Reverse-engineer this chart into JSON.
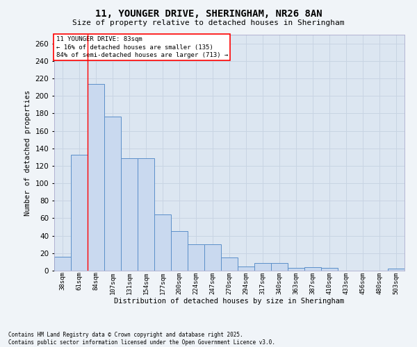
{
  "title_line1": "11, YOUNGER DRIVE, SHERINGHAM, NR26 8AN",
  "title_line2": "Size of property relative to detached houses in Sheringham",
  "xlabel": "Distribution of detached houses by size in Sheringham",
  "ylabel": "Number of detached properties",
  "categories": [
    "38sqm",
    "61sqm",
    "84sqm",
    "107sqm",
    "131sqm",
    "154sqm",
    "177sqm",
    "200sqm",
    "224sqm",
    "247sqm",
    "270sqm",
    "294sqm",
    "317sqm",
    "340sqm",
    "363sqm",
    "387sqm",
    "410sqm",
    "433sqm",
    "456sqm",
    "480sqm",
    "503sqm"
  ],
  "values": [
    16,
    133,
    214,
    176,
    129,
    129,
    64,
    45,
    30,
    30,
    15,
    5,
    9,
    9,
    3,
    4,
    3,
    0,
    0,
    0,
    2
  ],
  "bar_color": "#c9d9ef",
  "bar_edge_color": "#5b8fc9",
  "annotation_text": "11 YOUNGER DRIVE: 83sqm\n← 16% of detached houses are smaller (135)\n84% of semi-detached houses are larger (713) →",
  "grid_color": "#c8d4e3",
  "background_color": "#dce6f1",
  "figure_background": "#f0f4f8",
  "footer_text": "Contains HM Land Registry data © Crown copyright and database right 2025.\nContains public sector information licensed under the Open Government Licence v3.0.",
  "ylim": [
    0,
    270
  ],
  "yticks": [
    0,
    20,
    40,
    60,
    80,
    100,
    120,
    140,
    160,
    180,
    200,
    220,
    240,
    260
  ]
}
